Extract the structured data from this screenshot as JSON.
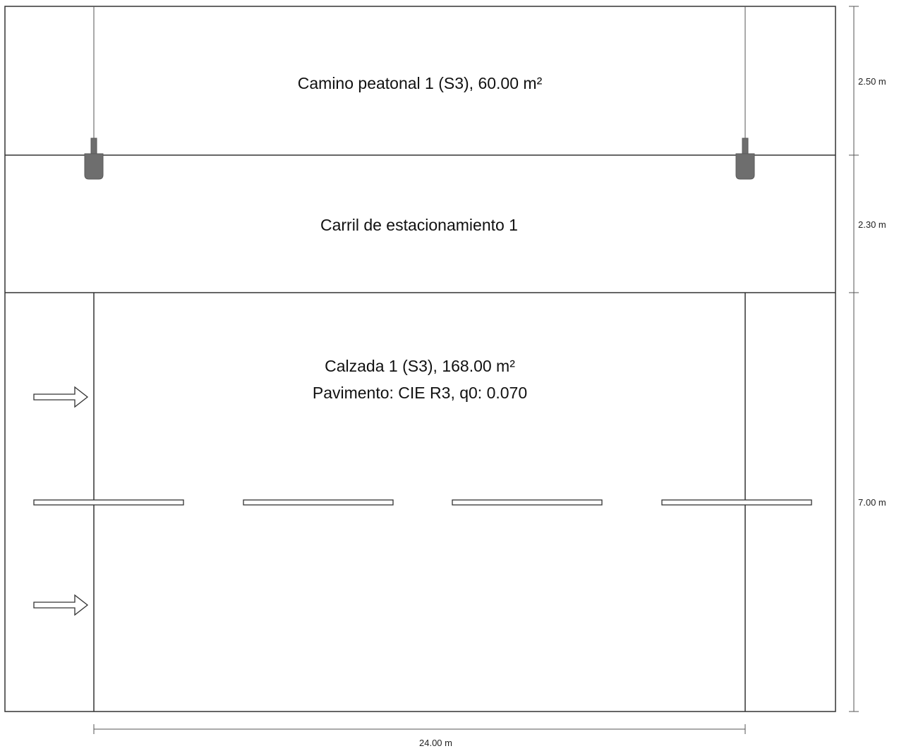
{
  "zones": [
    {
      "name": "Camino peatonal 1 (S3), 60.00 m²",
      "width_label": "2.50 m"
    },
    {
      "name": "Carril de estacionamiento 1",
      "width_label": "2.30 m"
    },
    {
      "name": "Calzada 1 (S3), 168.00 m²",
      "subtitle": "Pavimento: CIE R3, q0: 0.070",
      "width_label": "7.00 m"
    }
  ],
  "length_label": "24.00 m",
  "luminaire_count": 2,
  "traffic_arrows": 2,
  "colors": {
    "outline": "#333333",
    "luminaire": "#6e6e6e",
    "background": "#ffffff"
  }
}
